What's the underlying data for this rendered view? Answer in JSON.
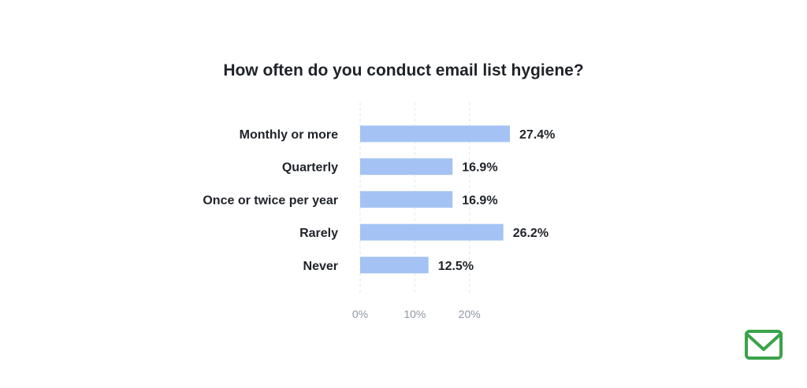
{
  "chart_data": {
    "type": "bar",
    "orientation": "horizontal",
    "title": "How often do you conduct email list hygiene?",
    "categories": [
      "Monthly or more",
      "Quarterly",
      "Once or twice per year",
      "Rarely",
      "Never"
    ],
    "values": [
      27.4,
      16.9,
      16.9,
      26.2,
      12.5
    ],
    "value_labels": [
      "27.4%",
      "16.9%",
      "16.9%",
      "26.2%",
      "12.5%"
    ],
    "x_ticks": [
      0,
      10,
      20
    ],
    "x_tick_labels": [
      "0%",
      "10%",
      "20%"
    ],
    "xlim": [
      0,
      27.4
    ],
    "xlabel": "",
    "ylabel": "",
    "grid": true,
    "bar_color": "#a4c2f4"
  },
  "brand": {
    "logo_icon": "envelope-check-icon",
    "logo_color": "#3aa34a"
  }
}
